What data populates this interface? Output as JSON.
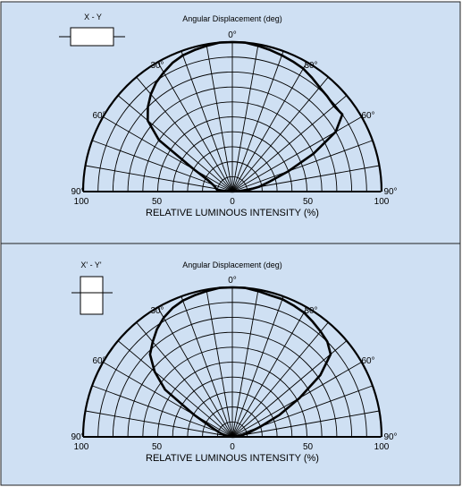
{
  "colors": {
    "panel_bg": "#cfe0f3",
    "ink": "#000000",
    "border": "#222222"
  },
  "chart_data": [
    {
      "type": "polar",
      "orientation_label": "X - Y",
      "title": "Angular Displacement (deg)",
      "xlabel": "RELATIVE LUMINOUS INTENSITY  (%)",
      "angle_labels": [
        "0°",
        "30°",
        "30°",
        "60°",
        "60°",
        "90°",
        "90°"
      ],
      "radial_tick_labels": [
        "100",
        "50",
        "0",
        "50",
        "100"
      ],
      "radial_range": [
        0,
        100
      ],
      "angle_range_deg": [
        -90,
        90
      ],
      "grid": true,
      "series": [
        {
          "angles_deg": [
            -90,
            -85,
            -80,
            -75,
            -70,
            -65,
            -60,
            -55,
            -50,
            -45,
            -40,
            -35,
            -30,
            -25,
            -20,
            -15,
            -10,
            -5,
            0,
            5,
            10,
            15,
            20,
            25,
            30,
            35,
            40,
            45,
            50,
            55,
            60,
            65,
            70,
            75,
            80,
            85,
            90
          ],
          "values": [
            0,
            10,
            11,
            12,
            14,
            18,
            30,
            60,
            74,
            80,
            85,
            89,
            92,
            95,
            97,
            98,
            99,
            100,
            100,
            100,
            99,
            98,
            97,
            96,
            95,
            93,
            91,
            90,
            89,
            90,
            80,
            60,
            40,
            26,
            18,
            10,
            0
          ]
        }
      ]
    },
    {
      "type": "polar",
      "orientation_label": "X' - Y'",
      "title": "Angular Displacement (deg)",
      "xlabel": "RELATIVE LUMINOUS INTENSITY  (%)",
      "angle_labels": [
        "0°",
        "30°",
        "30°",
        "60°",
        "60°",
        "90°",
        "90°"
      ],
      "radial_tick_labels": [
        "100",
        "50",
        "0",
        "50",
        "100"
      ],
      "radial_range": [
        0,
        100
      ],
      "angle_range_deg": [
        -90,
        90
      ],
      "grid": true,
      "series": [
        {
          "angles_deg": [
            -90,
            -80,
            -75,
            -70,
            -65,
            -60,
            -55,
            -50,
            -45,
            -40,
            -35,
            -30,
            -25,
            -20,
            -15,
            -10,
            -5,
            0,
            5,
            10,
            15,
            20,
            25,
            30,
            35,
            40,
            45,
            50,
            55,
            60,
            65,
            70,
            75,
            80,
            85,
            90
          ],
          "values": [
            0,
            5,
            7,
            10,
            16,
            30,
            55,
            68,
            78,
            83,
            88,
            92,
            95,
            97,
            98,
            99,
            100,
            100,
            100,
            99,
            98,
            98,
            97,
            96,
            94,
            92,
            90,
            86,
            72,
            52,
            35,
            20,
            12,
            7,
            3,
            0
          ]
        }
      ]
    }
  ]
}
